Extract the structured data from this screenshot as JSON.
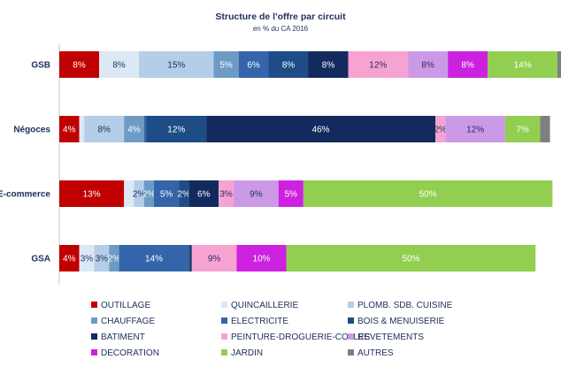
{
  "chart_data": {
    "type": "bar",
    "orientation": "horizontal-stacked",
    "title": "Structure de l'offre par circuit",
    "subtitle": "en % du CA 2016",
    "categories": [
      "GSB",
      "Négoces",
      "E-commerce",
      "GSA"
    ],
    "series": [
      {
        "name": "OUTILLAGE",
        "color": "#c00000",
        "values": [
          8,
          4,
          13,
          4
        ],
        "labels": [
          "8%",
          "4%",
          "13%",
          "4%"
        ]
      },
      {
        "name": "QUINCAILLERIE",
        "color": "#dde8f5",
        "values": [
          8,
          1,
          2,
          3
        ],
        "labels": [
          "8%",
          "",
          "",
          "3%"
        ]
      },
      {
        "name": "PLOMB. SDB. CUISINE",
        "color": "#b4cde8",
        "values": [
          15,
          8,
          2,
          3
        ],
        "labels": [
          "15%",
          "8%",
          "2%",
          "3%"
        ]
      },
      {
        "name": "CHAUFFAGE",
        "color": "#6e9bc6",
        "values": [
          5,
          4,
          2,
          2
        ],
        "labels": [
          "5%",
          "4%",
          "2%",
          "2%"
        ]
      },
      {
        "name": "ELECTRICITE",
        "color": "#3465aa",
        "values": [
          6,
          0.5,
          5,
          14
        ],
        "labels": [
          "6%",
          "",
          "5%",
          "14%"
        ]
      },
      {
        "name": "BOIS & MENUISERIE",
        "color": "#1e4c86",
        "values": [
          8,
          12,
          2,
          0.3
        ],
        "labels": [
          "8%",
          "12%",
          "2%",
          ""
        ]
      },
      {
        "name": "BATIMENT",
        "color": "#132a5e",
        "values": [
          8,
          46,
          6,
          0.3
        ],
        "labels": [
          "8%",
          "46%",
          "6%",
          ""
        ]
      },
      {
        "name": "PEINTURE-DROGUERIE-COLLES",
        "color": "#f7a3d2",
        "values": [
          12,
          2,
          3,
          9
        ],
        "labels": [
          "12%",
          "2%",
          "3%",
          "9%"
        ]
      },
      {
        "name": "REVETEMENTS",
        "color": "#cc99e6",
        "values": [
          8,
          12,
          9,
          0
        ],
        "labels": [
          "8%",
          "12%",
          "9%",
          ""
        ]
      },
      {
        "name": "DECORATION",
        "color": "#cc22e0",
        "values": [
          8,
          0,
          5,
          10
        ],
        "labels": [
          "8%",
          "",
          "5%",
          "10%"
        ]
      },
      {
        "name": "JARDIN",
        "color": "#92cf50",
        "values": [
          14,
          7,
          50,
          50
        ],
        "labels": [
          "14%",
          "7%",
          "50%",
          "50%"
        ]
      },
      {
        "name": "AUTRES",
        "color": "#7f7f7f",
        "values": [
          2,
          2,
          0,
          0
        ],
        "labels": [
          "",
          "",
          "",
          ""
        ]
      }
    ],
    "xlim": [
      0,
      100
    ],
    "grid": false,
    "legend_position": "bottom"
  }
}
